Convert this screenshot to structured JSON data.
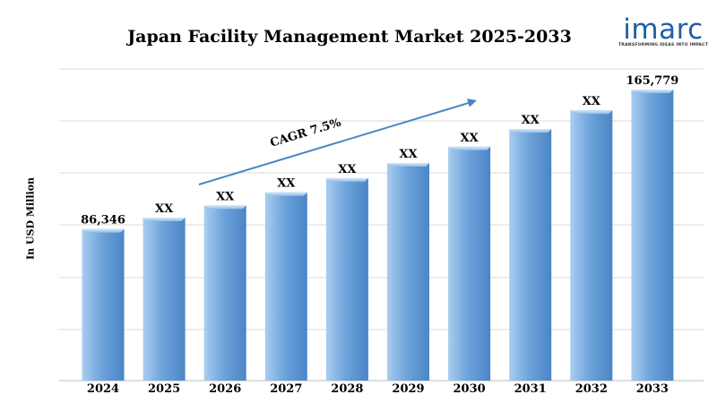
{
  "logo": {
    "word": "imarc",
    "tagline": "TRANSFORMING IDEAS INTO IMPACT"
  },
  "colors": {
    "bar_top": "#a9cdf0",
    "bar_mid": "#6fa4db",
    "bar_dark": "#4a85c6",
    "arrow": "#4b86c2",
    "logo": "#1f5fa6",
    "grid": "#d9d9d9"
  },
  "chart_data": {
    "type": "bar",
    "title": "Japan Facility Management Market 2025-2033",
    "xlabel": "",
    "ylabel": "In USD Million",
    "categories": [
      "2024",
      "2025",
      "2026",
      "2027",
      "2028",
      "2029",
      "2030",
      "2031",
      "2032",
      "2033"
    ],
    "values": [
      86346,
      92822,
      99784,
      107268,
      115313,
      123961,
      133258,
      143253,
      153996,
      165779
    ],
    "data_labels": [
      "86,346",
      "XX",
      "XX",
      "XX",
      "XX",
      "XX",
      "XX",
      "XX",
      "XX",
      "165,779"
    ],
    "ylim": [
      0,
      180000
    ],
    "grid": true,
    "annotation": {
      "text": "CAGR 7.5%",
      "type": "arrow"
    }
  }
}
